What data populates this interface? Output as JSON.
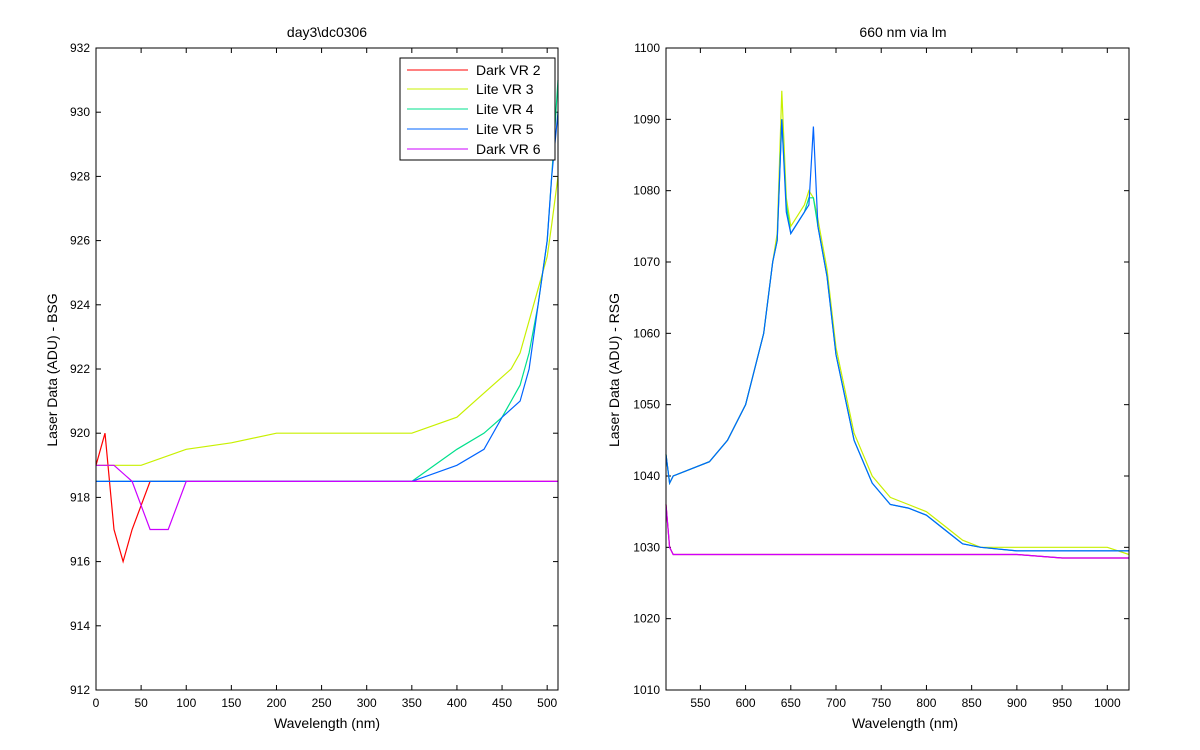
{
  "colors": {
    "Dark VR 2": "#ff0000",
    "Lite VR 3": "#c8f000",
    "Lite VR 4": "#00e08c",
    "Lite VR 5": "#0064ff",
    "Dark VR 6": "#cc00ff"
  },
  "chart_data": [
    {
      "type": "line",
      "title": "day3\\dc0306",
      "xlabel": "Wavelength (nm)",
      "ylabel": "Laser Data (ADU) - BSG",
      "xlim": [
        0,
        512
      ],
      "ylim": [
        912,
        932
      ],
      "xticks": [
        0,
        50,
        100,
        150,
        200,
        250,
        300,
        350,
        400,
        450,
        500
      ],
      "yticks": [
        912,
        914,
        916,
        918,
        920,
        922,
        924,
        926,
        928,
        930,
        932
      ],
      "legend_position": "top-right",
      "series": [
        {
          "name": "Dark VR 2",
          "x": [
            0,
            10,
            20,
            30,
            40,
            60,
            100,
            200,
            300,
            400,
            450,
            500,
            512
          ],
          "y": [
            919,
            920,
            917,
            916,
            917,
            918.5,
            918.5,
            918.5,
            918.5,
            918.5,
            918.5,
            918.5,
            918.5
          ]
        },
        {
          "name": "Lite VR 3",
          "x": [
            0,
            10,
            50,
            100,
            150,
            200,
            250,
            300,
            350,
            400,
            420,
            440,
            460,
            470,
            480,
            490,
            500,
            505,
            512
          ],
          "y": [
            919,
            919,
            919,
            919.5,
            919.7,
            920,
            920,
            920,
            920,
            920.5,
            921,
            921.5,
            922,
            922.5,
            923.5,
            924.5,
            925.5,
            926.5,
            928
          ]
        },
        {
          "name": "Lite VR 4",
          "x": [
            0,
            50,
            100,
            150,
            200,
            250,
            300,
            350,
            400,
            430,
            450,
            470,
            480,
            490,
            500,
            505,
            512
          ],
          "y": [
            918.5,
            918.5,
            918.5,
            918.5,
            918.5,
            918.5,
            918.5,
            918.5,
            919.5,
            920,
            920.5,
            921.5,
            922.5,
            924,
            926,
            928,
            931
          ]
        },
        {
          "name": "Lite VR 5",
          "x": [
            0,
            50,
            100,
            150,
            200,
            250,
            300,
            350,
            400,
            430,
            450,
            470,
            480,
            490,
            500,
            505,
            512
          ],
          "y": [
            918.5,
            918.5,
            918.5,
            918.5,
            918.5,
            918.5,
            918.5,
            918.5,
            919,
            919.5,
            920.5,
            921,
            922,
            924,
            926,
            928,
            930
          ]
        },
        {
          "name": "Dark VR 6",
          "x": [
            0,
            20,
            40,
            60,
            80,
            100,
            150,
            200,
            300,
            400,
            450,
            500,
            512
          ],
          "y": [
            919,
            919,
            918.5,
            917,
            917,
            918.5,
            918.5,
            918.5,
            918.5,
            918.5,
            918.5,
            918.5,
            918.5
          ]
        }
      ]
    },
    {
      "type": "line",
      "title": "660 nm via lm",
      "xlabel": "Wavelength (nm)",
      "ylabel": "Laser Data (ADU) - RSG",
      "xlim": [
        512,
        1024
      ],
      "ylim": [
        1010,
        1100
      ],
      "xticks": [
        550,
        600,
        650,
        700,
        750,
        800,
        850,
        900,
        950,
        1000
      ],
      "yticks": [
        1010,
        1020,
        1030,
        1040,
        1050,
        1060,
        1070,
        1080,
        1090,
        1100
      ],
      "legend_position": "none",
      "series": [
        {
          "name": "Dark VR 2",
          "x": [
            512,
            516,
            520,
            600,
            700,
            800,
            850,
            900,
            950,
            1000,
            1024
          ],
          "y": [
            1036,
            1030,
            1029,
            1029,
            1029,
            1029,
            1029,
            1029,
            1028.5,
            1028.5,
            1028.5
          ]
        },
        {
          "name": "Lite VR 3",
          "x": [
            512,
            516,
            520,
            560,
            580,
            600,
            620,
            630,
            635,
            640,
            645,
            650,
            665,
            670,
            675,
            680,
            690,
            700,
            720,
            740,
            760,
            780,
            800,
            820,
            840,
            860,
            900,
            950,
            1000,
            1024
          ],
          "y": [
            1043,
            1039,
            1040,
            1042,
            1045,
            1050,
            1060,
            1070,
            1074,
            1094,
            1079,
            1075,
            1078,
            1080,
            1079,
            1076,
            1069,
            1058,
            1046,
            1040,
            1037,
            1036,
            1035,
            1033,
            1031,
            1030,
            1030,
            1030,
            1030,
            1029
          ]
        },
        {
          "name": "Lite VR 4",
          "x": [
            512,
            516,
            520,
            560,
            580,
            600,
            620,
            630,
            635,
            640,
            645,
            650,
            665,
            670,
            675,
            680,
            690,
            700,
            720,
            740,
            760,
            780,
            800,
            820,
            840,
            860,
            900,
            950,
            1000,
            1024
          ],
          "y": [
            1043,
            1039,
            1040,
            1042,
            1045,
            1050,
            1060,
            1070,
            1073,
            1090,
            1078,
            1074,
            1077,
            1079,
            1079,
            1075,
            1068,
            1057,
            1045,
            1039,
            1036,
            1035.5,
            1034.5,
            1032.5,
            1030.5,
            1030,
            1029.5,
            1029.5,
            1029.5,
            1029.5
          ]
        },
        {
          "name": "Lite VR 5",
          "x": [
            512,
            516,
            520,
            560,
            580,
            600,
            620,
            630,
            635,
            640,
            645,
            650,
            665,
            670,
            675,
            680,
            690,
            700,
            720,
            740,
            760,
            780,
            800,
            820,
            840,
            860,
            900,
            950,
            1000,
            1024
          ],
          "y": [
            1043,
            1039,
            1040,
            1042,
            1045,
            1050,
            1060,
            1070,
            1073,
            1090,
            1077,
            1074,
            1077,
            1078,
            1089,
            1075,
            1068,
            1057,
            1045,
            1039,
            1036,
            1035.5,
            1034.5,
            1032.5,
            1030.5,
            1030,
            1029.5,
            1029.5,
            1029.5,
            1029.5
          ]
        },
        {
          "name": "Dark VR 6",
          "x": [
            512,
            516,
            520,
            600,
            700,
            800,
            850,
            900,
            950,
            1000,
            1024
          ],
          "y": [
            1036,
            1030,
            1029,
            1029,
            1029,
            1029,
            1029,
            1029,
            1028.5,
            1028.5,
            1028.5
          ]
        }
      ]
    }
  ]
}
